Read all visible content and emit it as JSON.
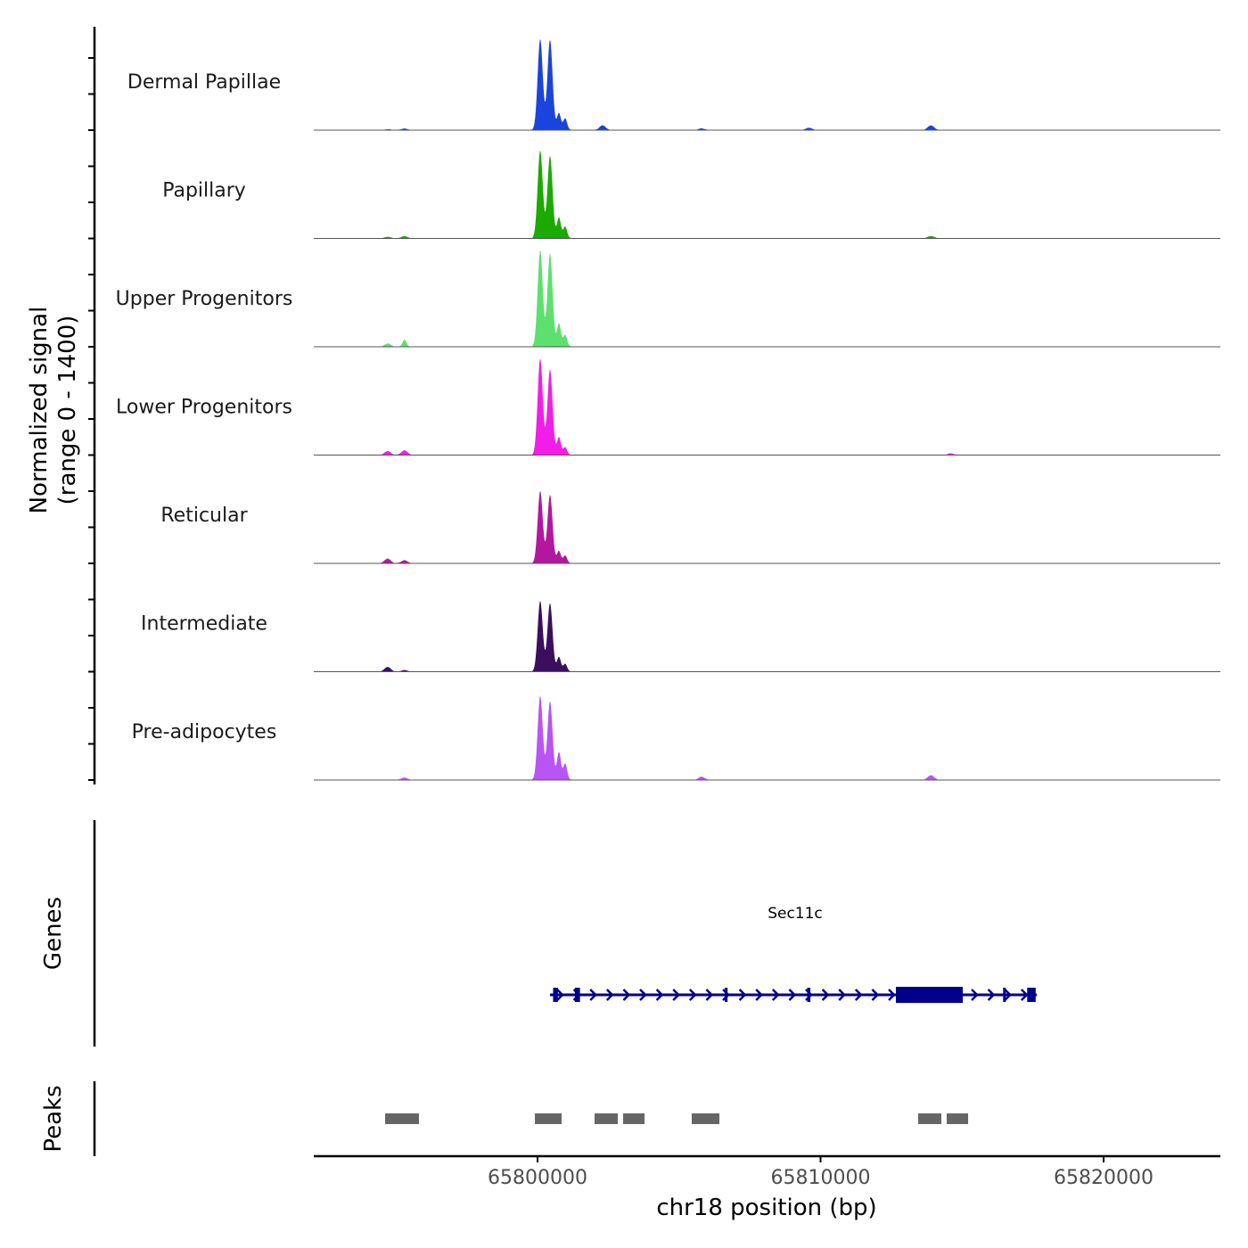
{
  "chart_data": {
    "type": "area",
    "ylabel_line1": "Normalized signal",
    "ylabel_line2": "(range 0 - 1400)",
    "ylim": [
      0,
      1400
    ],
    "xlabel": "chr18 position (bp)",
    "xlim": [
      65792100,
      65824100
    ],
    "x_ticks": [
      65800000,
      65810000,
      65820000
    ],
    "x_tick_labels": [
      "65800000",
      "65810000",
      "65820000"
    ],
    "groups": [
      {
        "name": "Dermal Papillae",
        "color": "#1a44dc",
        "peaks": [
          [
            65800094,
            1170
          ],
          [
            65800441,
            1160
          ],
          [
            65800756,
            220
          ],
          [
            65800976,
            150
          ],
          [
            65794700,
            10
          ],
          [
            65795300,
            20
          ],
          [
            65802300,
            60
          ],
          [
            65809600,
            30
          ],
          [
            65813900,
            60
          ],
          [
            65805800,
            20
          ]
        ]
      },
      {
        "name": "Papillary",
        "color": "#1aaa00",
        "peaks": [
          [
            65800094,
            1130
          ],
          [
            65800441,
            1060
          ],
          [
            65800756,
            270
          ],
          [
            65800976,
            150
          ],
          [
            65794700,
            20
          ],
          [
            65795300,
            30
          ],
          [
            65813900,
            30
          ]
        ]
      },
      {
        "name": "Upper Progenitors",
        "color": "#5ee06e",
        "peaks": [
          [
            65800094,
            1240
          ],
          [
            65800441,
            1200
          ],
          [
            65800756,
            300
          ],
          [
            65800976,
            150
          ],
          [
            65794700,
            40
          ],
          [
            65795300,
            90
          ]
        ]
      },
      {
        "name": "Lower Progenitors",
        "color": "#f01ee8",
        "peaks": [
          [
            65800094,
            1240
          ],
          [
            65800441,
            1100
          ],
          [
            65800756,
            230
          ],
          [
            65800976,
            100
          ],
          [
            65794700,
            50
          ],
          [
            65795300,
            60
          ],
          [
            65814600,
            20
          ]
        ]
      },
      {
        "name": "Reticular",
        "color": "#b2189f",
        "peaks": [
          [
            65800094,
            930
          ],
          [
            65800441,
            880
          ],
          [
            65800756,
            160
          ],
          [
            65800976,
            100
          ],
          [
            65794700,
            60
          ],
          [
            65795300,
            40
          ]
        ]
      },
      {
        "name": "Intermediate",
        "color": "#3c0f5e",
        "peaks": [
          [
            65800094,
            910
          ],
          [
            65800441,
            880
          ],
          [
            65800756,
            190
          ],
          [
            65800976,
            100
          ],
          [
            65794700,
            60
          ],
          [
            65795300,
            20
          ]
        ]
      },
      {
        "name": "Pre-adipocytes",
        "color": "#b954f5",
        "peaks": [
          [
            65800094,
            1080
          ],
          [
            65800441,
            1010
          ],
          [
            65800756,
            360
          ],
          [
            65800976,
            210
          ],
          [
            65795300,
            30
          ],
          [
            65805800,
            40
          ],
          [
            65813900,
            60
          ]
        ]
      }
    ],
    "genes_label": "Genes",
    "gene": {
      "name": "Sec11c",
      "color": "#00008b",
      "start": 65800441,
      "end": 65817638,
      "exons": [
        [
          65800550,
          65800720
        ],
        [
          65801320,
          65801500
        ],
        [
          65806620,
          65806680
        ],
        [
          65809530,
          65809640
        ],
        [
          65812661,
          65815024
        ],
        [
          65816450,
          65816520
        ],
        [
          65817300,
          65817600
        ]
      ]
    },
    "peaks_label": "Peaks",
    "peaks_color": "#666666",
    "peak_regions": [
      [
        65794614,
        65795811
      ],
      [
        65799906,
        65800850
      ],
      [
        65802016,
        65802835
      ],
      [
        65803024,
        65803780
      ],
      [
        65805449,
        65806425
      ],
      [
        65813449,
        65814268
      ],
      [
        65814457,
        65815213
      ]
    ]
  }
}
